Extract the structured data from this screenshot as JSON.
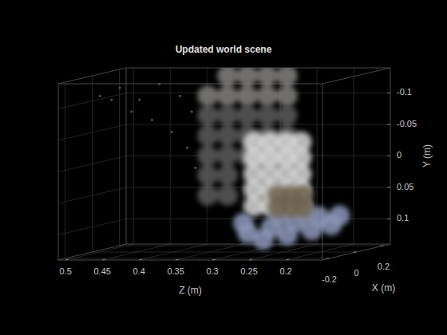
{
  "chart_data": {
    "type": "scatter",
    "title": "Updated world scene",
    "xlabel": "X (m)",
    "ylabel": "Y (m)",
    "zlabel": "Z (m)",
    "xlim": [
      -0.25,
      0.25
    ],
    "xticks": [
      -0.2,
      0,
      0.2
    ],
    "ylim": [
      0.14,
      -0.14
    ],
    "yticks": [
      -0.1,
      -0.05,
      0,
      0.05,
      0.1
    ],
    "zlim": [
      0.15,
      0.51
    ],
    "zticks": [
      0.5,
      0.45,
      0.4,
      0.35,
      0.3,
      0.25,
      0.2
    ],
    "grid": true,
    "series": [
      {
        "color": "#4d4d4d",
        "marker": "point",
        "x": [
          -0.1,
          -0.1,
          -0.1,
          -0.1,
          -0.1,
          -0.1,
          -0.1,
          -0.1,
          -0.1,
          -0.1,
          -0.1,
          -0.1
        ],
        "y": [
          -0.113,
          -0.126,
          -0.107,
          -0.132,
          -0.113,
          -0.075,
          -0.056,
          -0.088,
          -0.088,
          -0.031,
          0.001,
          -0.107
        ],
        "z": [
          0.481,
          0.454,
          0.427,
          0.4,
          0.372,
          0.41,
          0.383,
          0.356,
          0.438,
          0.362,
          0.351,
          0.465
        ]
      },
      {
        "color": "#5c5c5c",
        "marker": "circle",
        "x": [
          0.1,
          0.1,
          0.1,
          0.1,
          0.1,
          0.1,
          0.1,
          0.1,
          0.1,
          0.1,
          0.1,
          0.1,
          0.1,
          0.1,
          0.1,
          0.1,
          0.1,
          0.1,
          0.1
        ],
        "y": [
          -0.072,
          -0.072,
          -0.072,
          -0.072,
          -0.072,
          -0.04,
          -0.04,
          -0.04,
          -0.04,
          -0.04,
          -0.008,
          -0.008,
          -0.008,
          -0.008,
          -0.008,
          0.023,
          0.023,
          0.055,
          0.055
        ],
        "z": [
          0.371,
          0.344,
          0.317,
          0.29,
          0.263,
          0.371,
          0.344,
          0.317,
          0.29,
          0.263,
          0.371,
          0.344,
          0.317,
          0.29,
          0.263,
          0.371,
          0.344,
          0.371,
          0.344
        ]
      },
      {
        "color": "#858380",
        "marker": "circle",
        "x": [
          0.1,
          0.1,
          0.1,
          0.1,
          0.1,
          0.1,
          0.1,
          0.1,
          0.1
        ],
        "y": [
          -0.135,
          -0.135,
          -0.135,
          -0.135,
          -0.103,
          -0.103,
          -0.103,
          -0.103,
          -0.103
        ],
        "z": [
          0.344,
          0.317,
          0.29,
          0.263,
          0.371,
          0.344,
          0.317,
          0.29,
          0.263
        ]
      },
      {
        "color": "#d9d9d9",
        "marker": "circle",
        "x": [
          0,
          0,
          0,
          0,
          0,
          0,
          0,
          0,
          0,
          0,
          0,
          0,
          0,
          0,
          0,
          0,
          0,
          0,
          0,
          0
        ],
        "y": [
          -0.035,
          -0.035,
          -0.035,
          -0.035,
          -0.01,
          -0.01,
          -0.01,
          -0.01,
          0.016,
          0.016,
          0.016,
          0.016,
          0.041,
          0.041,
          0.041,
          0.041,
          0.067,
          0.067,
          0.067,
          0.067
        ],
        "z": [
          0.29,
          0.268,
          0.246,
          0.225,
          0.29,
          0.268,
          0.246,
          0.225,
          0.29,
          0.268,
          0.246,
          0.225,
          0.29,
          0.268,
          0.246,
          0.225,
          0.29,
          0.268,
          0.246,
          0.225
        ]
      },
      {
        "color": "#8e98b8",
        "marker": "circle",
        "x": [
          0,
          0,
          0,
          0,
          0,
          0,
          0,
          0,
          0,
          0,
          0,
          0
        ],
        "y": [
          0.11,
          0.101,
          0.092,
          0.084,
          0.082,
          0.12,
          0.113,
          0.105,
          0.097,
          0.082,
          0.075,
          0.094
        ],
        "z": [
          0.298,
          0.266,
          0.233,
          0.201,
          0.173,
          0.277,
          0.244,
          0.211,
          0.184,
          0.255,
          0.222,
          0.304
        ]
      },
      {
        "color": "#6e6450",
        "marker": "circle",
        "x": [
          0.05,
          0.05,
          0.05,
          0.05,
          0.05,
          0.05
        ],
        "y": [
          0.053,
          0.053,
          0.053,
          0.072,
          0.072,
          0.072
        ],
        "z": [
          0.266,
          0.248,
          0.232,
          0.266,
          0.248,
          0.232
        ]
      }
    ]
  }
}
